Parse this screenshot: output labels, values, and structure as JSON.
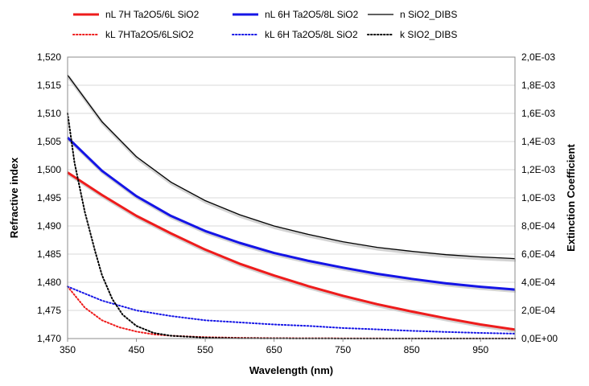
{
  "chart_data": {
    "type": "line",
    "xlabel": "Wavelength (nm)",
    "ylabel_left": "Refractive index",
    "ylabel_right": "Extinction Coefficient",
    "xlim": [
      350,
      1000
    ],
    "ylim_left": [
      1.47,
      1.52
    ],
    "ylim_right": [
      0,
      0.002
    ],
    "x_ticks": [
      "350",
      "450",
      "550",
      "650",
      "750",
      "850",
      "950"
    ],
    "x_tick_values": [
      350,
      450,
      550,
      650,
      750,
      850,
      950
    ],
    "y_left_ticks": [
      "1,470",
      "1,475",
      "1,480",
      "1,485",
      "1,490",
      "1,495",
      "1,500",
      "1,505",
      "1,510",
      "1,515",
      "1,520"
    ],
    "y_left_tick_values": [
      1.47,
      1.475,
      1.48,
      1.485,
      1.49,
      1.495,
      1.5,
      1.505,
      1.51,
      1.515,
      1.52
    ],
    "y_right_ticks": [
      "0,0E+00",
      "2,0E-04",
      "4,0E-04",
      "6,0E-04",
      "8,0E-04",
      "1,0E-03",
      "1,2E-03",
      "1,4E-03",
      "1,6E-03",
      "1,8E-03",
      "2,0E-03"
    ],
    "y_right_tick_values": [
      0,
      0.0002,
      0.0004,
      0.0006,
      0.0008,
      0.001,
      0.0012,
      0.0014,
      0.0016,
      0.0018,
      0.002
    ],
    "grid": "horizontal",
    "legend_position": "top",
    "series": [
      {
        "name": "nL 7H Ta2O5/6L SiO2",
        "axis": "left",
        "color": "#ee1c1c",
        "style": "solid",
        "x": [
          350,
          400,
          450,
          500,
          550,
          600,
          650,
          700,
          750,
          800,
          850,
          900,
          950,
          1000
        ],
        "y": [
          1.4995,
          1.4955,
          1.4918,
          1.4887,
          1.4858,
          1.4833,
          1.4812,
          1.4793,
          1.4776,
          1.4761,
          1.4748,
          1.4736,
          1.4725,
          1.4716
        ]
      },
      {
        "name": "nL 6H Ta2O5/8L SiO2",
        "axis": "left",
        "color": "#1515e6",
        "style": "solid",
        "x": [
          350,
          400,
          450,
          500,
          550,
          600,
          650,
          700,
          750,
          800,
          850,
          900,
          950,
          1000
        ],
        "y": [
          1.5057,
          1.4998,
          1.4953,
          1.4918,
          1.4891,
          1.487,
          1.4852,
          1.4838,
          1.4826,
          1.4815,
          1.4806,
          1.4798,
          1.4792,
          1.4787
        ]
      },
      {
        "name": "n SiO2_DIBS",
        "axis": "left",
        "color": "#000000",
        "style": "solid",
        "x": [
          350,
          400,
          450,
          500,
          550,
          600,
          650,
          700,
          750,
          800,
          850,
          900,
          950,
          1000
        ],
        "y": [
          1.5168,
          1.5085,
          1.5023,
          1.4978,
          1.4945,
          1.492,
          1.49,
          1.4885,
          1.4872,
          1.4862,
          1.4855,
          1.4849,
          1.4845,
          1.4842
        ]
      },
      {
        "name": "kL 7HTa2O5/6LSiO2",
        "axis": "right",
        "color": "#ee1c1c",
        "style": "dotted",
        "x": [
          350,
          375,
          400,
          425,
          450,
          475,
          500,
          550,
          600,
          650,
          700,
          800,
          900,
          1000
        ],
        "y": [
          0.00037,
          0.00022,
          0.00013,
          8e-05,
          5e-05,
          3e-05,
          2e-05,
          1e-05,
          5e-06,
          3e-06,
          2e-06,
          1e-06,
          5e-07,
          3e-07
        ]
      },
      {
        "name": "kL 6H Ta2O5/8L SiO2",
        "axis": "right",
        "color": "#1515e6",
        "style": "dotted",
        "x": [
          350,
          400,
          450,
          500,
          550,
          600,
          650,
          700,
          750,
          800,
          850,
          900,
          950,
          1000
        ],
        "y": [
          0.00037,
          0.00027,
          0.0002,
          0.00016,
          0.00013,
          0.000115,
          0.0001,
          9e-05,
          7.5e-05,
          6.5e-05,
          5.5e-05,
          4.7e-05,
          4e-05,
          3.5e-05
        ]
      },
      {
        "name": "k SIO2_DIBS",
        "axis": "right",
        "color": "#000000",
        "style": "dotted",
        "x": [
          350,
          360,
          375,
          390,
          400,
          415,
          430,
          450,
          475,
          500,
          550,
          600,
          700,
          800,
          1000
        ],
        "y": [
          0.0016,
          0.00125,
          0.0009,
          0.00062,
          0.00045,
          0.00028,
          0.00017,
          9e-05,
          4e-05,
          2e-05,
          6e-06,
          2e-06,
          5e-07,
          2e-07,
          1e-07
        ]
      }
    ]
  }
}
